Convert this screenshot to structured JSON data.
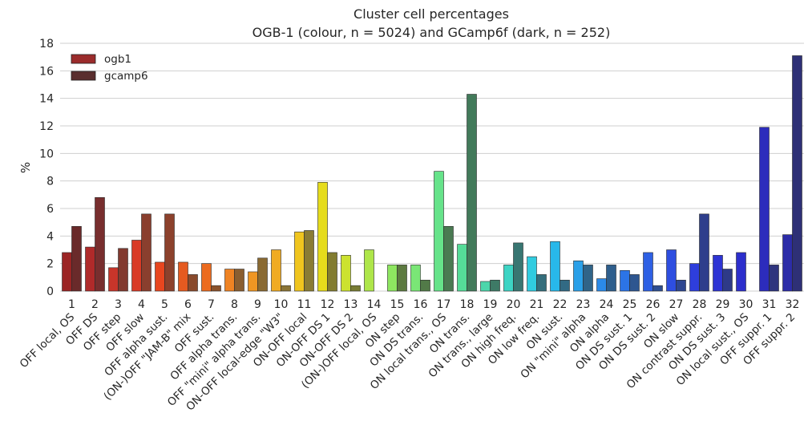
{
  "chart_data": {
    "type": "bar",
    "title": "Cluster cell percentages",
    "subtitle": "OGB-1 (colour, n = 5024) and GCamp6f (dark, n = 252)",
    "xlabel": "",
    "ylabel": "%",
    "ylim": [
      0,
      18
    ],
    "yticks": [
      0,
      2,
      4,
      6,
      8,
      10,
      12,
      14,
      16,
      18
    ],
    "grid": true,
    "legend": "top-left",
    "category_numbers": [
      "1",
      "2",
      "3",
      "4",
      "5",
      "6",
      "7",
      "8",
      "9",
      "10",
      "11",
      "12",
      "13",
      "14",
      "15",
      "16",
      "17",
      "18",
      "19",
      "20",
      "21",
      "22",
      "23",
      "24",
      "25",
      "26",
      "27",
      "28",
      "29",
      "30",
      "31",
      "32"
    ],
    "categories": [
      "OFF local, OS",
      "OFF DS",
      "OFF step",
      "OFF slow",
      "OFF alpha sust.",
      "(ON-)OFF \"JAM-B\" mix",
      "OFF sust.",
      "OFF alpha trans.",
      "OFF \"mini\" alpha trans.",
      "ON-OFF local-edge \"W3\"",
      "ON-OFF local",
      "ON-OFF DS 1",
      "ON-OFF DS 2",
      "(ON-)OFF local, OS",
      "ON step",
      "ON DS trans.",
      "ON local trans., OS",
      "ON trans.",
      "ON trans., large",
      "ON high freq.",
      "ON low freq.",
      "ON sust.",
      "ON \"mini\" alpha",
      "ON alpha",
      "ON DS sust. 1",
      "ON DS sust. 2",
      "ON slow",
      "ON contrast suppr.",
      "ON DS sust. 3",
      "ON local sust., OS",
      "OFF suppr. 1",
      "OFF suppr. 2"
    ],
    "series": [
      {
        "name": "ogb1",
        "legend_color": "#9b2c2c",
        "values": [
          2.8,
          3.2,
          1.7,
          3.7,
          2.1,
          2.1,
          2.0,
          1.6,
          1.4,
          3.0,
          4.3,
          7.9,
          2.6,
          3.0,
          1.9,
          1.9,
          8.7,
          3.4,
          0.7,
          1.9,
          2.5,
          3.6,
          2.2,
          0.9,
          1.5,
          2.8,
          3.0,
          2.0,
          2.6,
          2.8,
          11.9,
          4.1
        ],
        "colors": [
          "#9b2424",
          "#b02a2a",
          "#c8352a",
          "#d93a26",
          "#e8461f",
          "#e55a20",
          "#ec6b1f",
          "#ef8323",
          "#ef9623",
          "#f0ab22",
          "#f0c51e",
          "#e6dc1c",
          "#cce22f",
          "#aee64a",
          "#8ee660",
          "#7ae676",
          "#66e38a",
          "#55dc98",
          "#4cd6ab",
          "#3dd4c4",
          "#30cce0",
          "#28b8ea",
          "#2aa0e8",
          "#2b8ae8",
          "#2c74e6",
          "#2e60e4",
          "#2e4ee0",
          "#2e3edc",
          "#2e34d4",
          "#2c2ecc",
          "#2c2cbc",
          "#2c2ca8"
        ]
      },
      {
        "name": "gcamp6",
        "legend_color": "#5a2e2e",
        "values": [
          4.7,
          6.8,
          3.1,
          5.6,
          5.6,
          1.2,
          0.4,
          1.6,
          2.4,
          0.4,
          4.4,
          2.8,
          0.4,
          0.0,
          1.9,
          0.8,
          4.7,
          14.3,
          0.8,
          3.5,
          1.2,
          0.8,
          1.9,
          1.9,
          1.2,
          0.4,
          0.8,
          5.6,
          1.6,
          0.0,
          1.9,
          17.1
        ],
        "colors": [
          "#6a2a2a",
          "#782e2e",
          "#823a2f",
          "#8a3f2e",
          "#8c412c",
          "#8a4a2c",
          "#8a522c",
          "#8a5e30",
          "#8a6a32",
          "#8a7436",
          "#8a7c34",
          "#827c30",
          "#787c34",
          "#6c7a3a",
          "#5c7a40",
          "#527a48",
          "#4a7a52",
          "#427a5a",
          "#3e7a66",
          "#387672",
          "#346e7c",
          "#326a84",
          "#306488",
          "#2e5e8c",
          "#2e5690",
          "#2e4e90",
          "#2e4690",
          "#2e3e8c",
          "#2e3a88",
          "#2e3684",
          "#2e347e",
          "#2e3076"
        ]
      }
    ]
  }
}
